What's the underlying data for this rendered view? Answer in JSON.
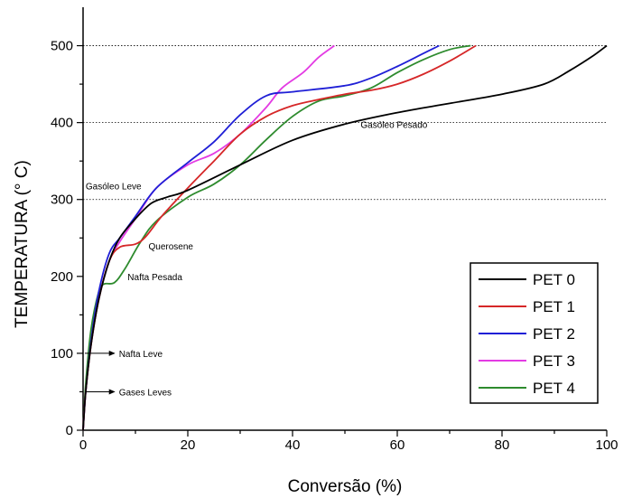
{
  "chart_data": {
    "type": "line",
    "xlabel": "Conversão (%)",
    "ylabel": "TEMPERATURA (° C)",
    "xlim": [
      0,
      100
    ],
    "ylim": [
      0,
      550
    ],
    "xticks": [
      "0",
      "20",
      "40",
      "60",
      "80",
      "100"
    ],
    "yticks": [
      "0",
      "100",
      "200",
      "300",
      "400",
      "500"
    ],
    "legend_position": "bottom-right",
    "reference_lines": [
      300,
      400,
      500
    ],
    "series": [
      {
        "name": "PET 0",
        "color": "#000000",
        "x": [
          0,
          0.5,
          1.5,
          3,
          5,
          7,
          10,
          13,
          16,
          20,
          30,
          40,
          50,
          60,
          70,
          80,
          88,
          93,
          97,
          100
        ],
        "y": [
          0,
          50,
          110,
          170,
          220,
          250,
          275,
          295,
          303,
          312,
          345,
          377,
          398,
          413,
          425,
          437,
          450,
          468,
          485,
          500
        ]
      },
      {
        "name": "PET 1",
        "color": "#d62728",
        "x": [
          0,
          0.5,
          1.5,
          3,
          5,
          7,
          10,
          12,
          15,
          20,
          25,
          30,
          35,
          40,
          45,
          50,
          55,
          60,
          65,
          70,
          75
        ],
        "y": [
          0,
          50,
          110,
          170,
          220,
          238,
          242,
          252,
          278,
          315,
          350,
          385,
          408,
          422,
          430,
          437,
          442,
          450,
          463,
          480,
          500
        ]
      },
      {
        "name": "PET 2",
        "color": "#1f1fd6",
        "x": [
          0,
          0.5,
          1.5,
          3,
          5,
          7,
          10,
          14,
          20,
          25,
          30,
          35,
          40,
          50,
          55,
          60,
          65,
          68
        ],
        "y": [
          0,
          50,
          115,
          180,
          230,
          250,
          278,
          315,
          348,
          375,
          410,
          435,
          440,
          448,
          458,
          473,
          490,
          500
        ]
      },
      {
        "name": "PET 3",
        "color": "#e33be3",
        "x": [
          0,
          0.5,
          1.5,
          3,
          5,
          7,
          10,
          14,
          20,
          25,
          30,
          35,
          38,
          42,
          45,
          48
        ],
        "y": [
          0,
          50,
          110,
          170,
          220,
          245,
          275,
          315,
          345,
          360,
          385,
          420,
          445,
          465,
          485,
          500
        ]
      },
      {
        "name": "PET 4",
        "color": "#2e8b2e",
        "x": [
          0,
          0.5,
          1.5,
          3,
          4,
          6,
          8,
          11,
          14,
          20,
          25,
          30,
          35,
          40,
          45,
          50,
          55,
          60,
          65,
          70,
          74
        ],
        "y": [
          0,
          60,
          130,
          180,
          190,
          192,
          210,
          245,
          272,
          303,
          320,
          345,
          378,
          408,
          428,
          435,
          445,
          465,
          482,
          495,
          500
        ]
      }
    ],
    "annotations": [
      {
        "text": "Gasóleo Pesado",
        "x": 53,
        "y": 398,
        "arrow": false
      },
      {
        "text": "Gasóleo Leve",
        "x": 0.5,
        "y": 318,
        "arrow": false
      },
      {
        "text": "Querosene",
        "x": 12.5,
        "y": 240,
        "arrow": false
      },
      {
        "text": "Nafta Pesada",
        "x": 8.5,
        "y": 200,
        "arrow": false
      },
      {
        "text": "Nafta Leve",
        "x": 6.5,
        "y": 100,
        "arrow": true
      },
      {
        "text": "Gases Leves",
        "x": 6.5,
        "y": 50,
        "arrow": true
      }
    ]
  }
}
